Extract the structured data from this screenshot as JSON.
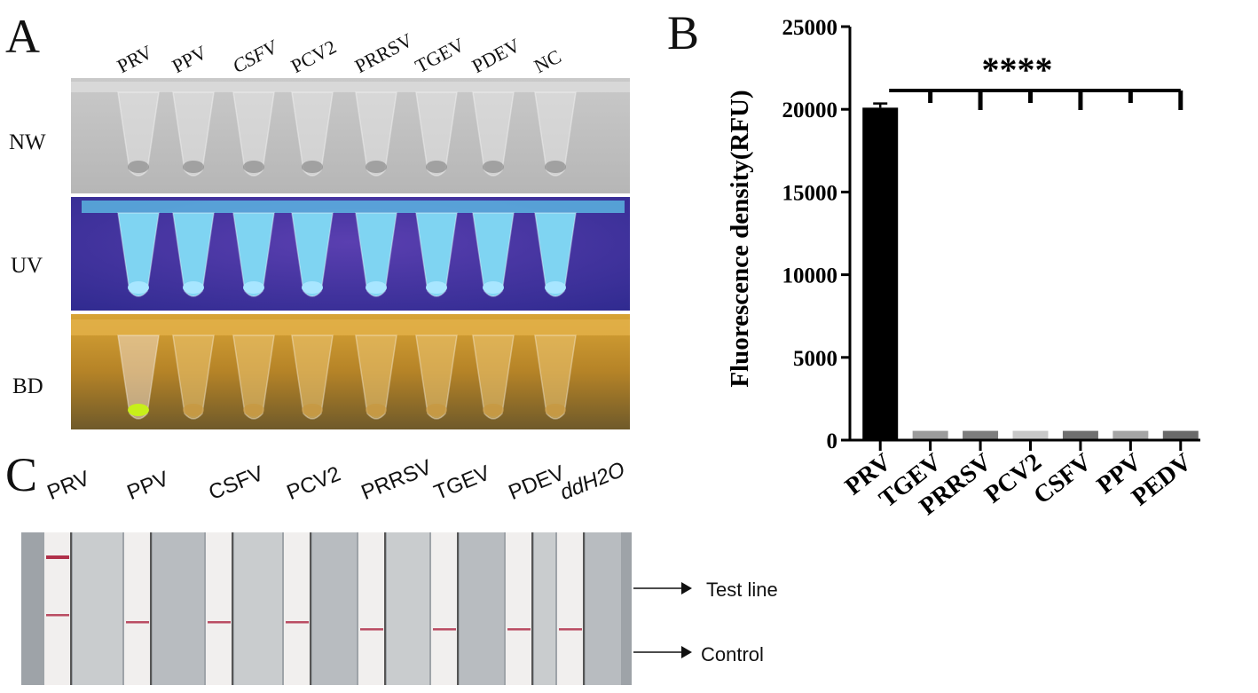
{
  "panels": {
    "a": {
      "letter": "A",
      "tubes": [
        "PRV",
        "PPV",
        "CSFV",
        "PCV2",
        "PRRSV",
        "TGEV",
        "PDEV",
        "NC"
      ],
      "rows": [
        "NW",
        "UV",
        "BD"
      ],
      "positive_index": 0
    },
    "b": {
      "letter": "B"
    },
    "c": {
      "letter": "C",
      "strips": [
        "PRV",
        "PPV",
        "CSFV",
        "PCV2",
        "PRRSV",
        "TGEV",
        "PDEV",
        "ddH2O"
      ],
      "test_line_label": "Test line",
      "control_label": "Control"
    }
  },
  "colors": {
    "uv_background": "#3b2f9e",
    "uv_glow": "#7fd4f2",
    "bd_background": "#b98a2a",
    "bd_positive": "#c7ef1a",
    "strip_line": "#b0304a",
    "bar_main": "#000000"
  },
  "chart_data": {
    "type": "bar",
    "title": "",
    "xlabel": "",
    "ylabel": "Fluorescence density(RFU)",
    "categories": [
      "PRV",
      "TGEV",
      "PRRSV",
      "PCV2",
      "CSFV",
      "PPV",
      "PEDV"
    ],
    "values": [
      20100,
      560,
      560,
      560,
      560,
      560,
      560
    ],
    "error": [
      250,
      0,
      0,
      0,
      0,
      0,
      0
    ],
    "bar_colors": [
      "#000000",
      "#9b9b9b",
      "#7d7d7d",
      "#c8c8c8",
      "#6f6f6f",
      "#a5a5a5",
      "#6a6a6a"
    ],
    "ylim": [
      0,
      25000
    ],
    "yticks": [
      "0",
      "5000",
      "10000",
      "15000",
      "20000",
      "25000"
    ],
    "significance": "****",
    "grid": false
  }
}
